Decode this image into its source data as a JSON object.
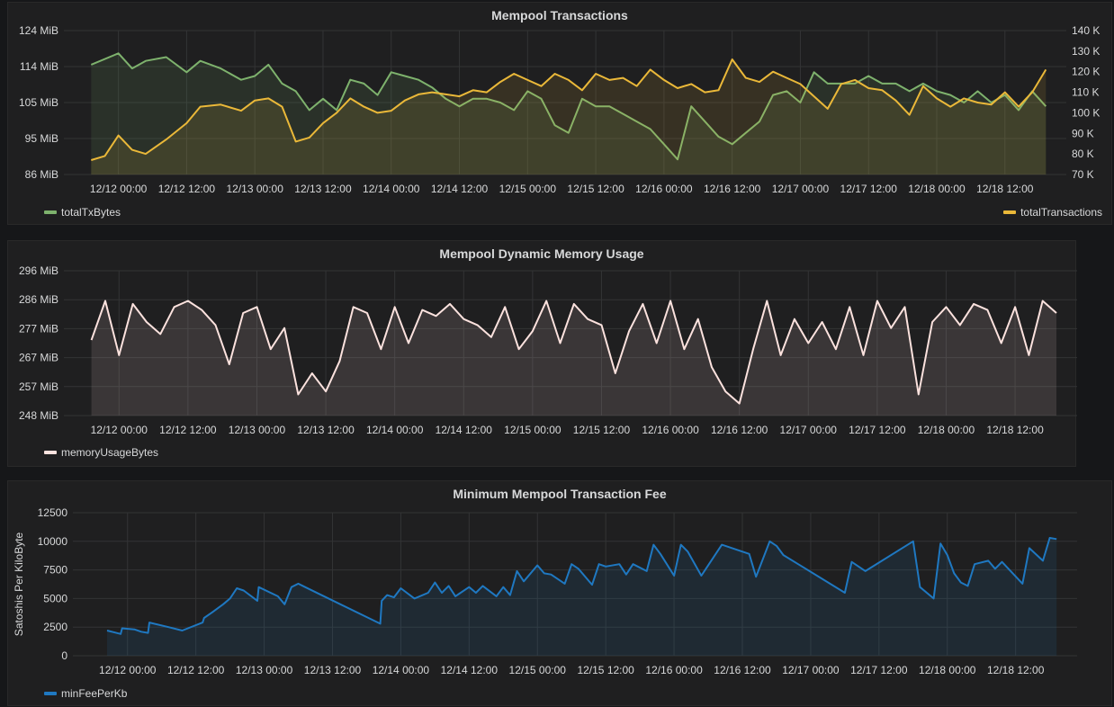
{
  "colors": {
    "green": "#7eb26d",
    "yellow": "#eab839",
    "pink": "#fce2de",
    "blue": "#1f78c1",
    "grid": "#333435",
    "tick": "#d8d9da"
  },
  "chart_data": [
    {
      "type": "line",
      "title": "Mempool Transactions",
      "x_ticks": [
        "12/12 00:00",
        "12/12 12:00",
        "12/13 00:00",
        "12/13 12:00",
        "12/14 00:00",
        "12/14 12:00",
        "12/15 00:00",
        "12/15 12:00",
        "12/16 00:00",
        "12/16 12:00",
        "12/17 00:00",
        "12/17 12:00",
        "12/18 00:00",
        "12/18 12:00"
      ],
      "y_ticks_left": [
        "124 MiB",
        "114 MiB",
        "105 MiB",
        "95 MiB",
        "86 MiB"
      ],
      "ylim_left": [
        86,
        124
      ],
      "y_ticks_right": [
        "140 K",
        "130 K",
        "120 K",
        "110 K",
        "100 K",
        "90 K",
        "80 K",
        "70 K"
      ],
      "ylim_right": [
        70,
        140
      ],
      "grid": true,
      "series": [
        {
          "name": "totalTxBytes",
          "axis": "left",
          "color": "#7eb26d",
          "x": [
            11.8,
            12.0,
            12.1,
            12.2,
            12.35,
            12.5,
            12.6,
            12.75,
            12.9,
            13.0,
            13.1,
            13.2,
            13.3,
            13.4,
            13.5,
            13.6,
            13.7,
            13.8,
            13.9,
            14.0,
            14.1,
            14.2,
            14.3,
            14.4,
            14.5,
            14.6,
            14.7,
            14.8,
            14.9,
            15.0,
            15.1,
            15.2,
            15.3,
            15.4,
            15.5,
            15.6,
            15.7,
            15.8,
            15.9,
            16.0,
            16.1,
            16.2,
            16.3,
            16.4,
            16.5,
            16.6,
            16.7,
            16.8,
            16.9,
            17.0,
            17.1,
            17.2,
            17.3,
            17.4,
            17.5,
            17.6,
            17.7,
            17.8,
            17.9,
            18.0,
            18.1,
            18.2,
            18.3,
            18.4,
            18.5,
            18.6,
            18.7,
            18.8
          ],
          "values": [
            115,
            118,
            114,
            116,
            117,
            113,
            116,
            114,
            111,
            112,
            115,
            110,
            108,
            103,
            106,
            103,
            111,
            110,
            107,
            113,
            112,
            111,
            109,
            106,
            104,
            106,
            106,
            105,
            103,
            108,
            106,
            99,
            97,
            106,
            104,
            104,
            102,
            100,
            98,
            94,
            90,
            104,
            100,
            96,
            94,
            97,
            100,
            107,
            108,
            105,
            113,
            110,
            110,
            110,
            112,
            110,
            110,
            108,
            110,
            108,
            107,
            105,
            108,
            105,
            107,
            103,
            108,
            104
          ]
        },
        {
          "name": "totalTransactions",
          "axis": "right",
          "color": "#eab839",
          "x": [
            11.8,
            11.9,
            12.0,
            12.1,
            12.2,
            12.35,
            12.5,
            12.6,
            12.75,
            12.9,
            13.0,
            13.1,
            13.2,
            13.3,
            13.4,
            13.5,
            13.6,
            13.7,
            13.8,
            13.9,
            14.0,
            14.1,
            14.2,
            14.3,
            14.4,
            14.5,
            14.6,
            14.7,
            14.8,
            14.9,
            15.0,
            15.1,
            15.2,
            15.3,
            15.4,
            15.5,
            15.6,
            15.7,
            15.8,
            15.9,
            16.0,
            16.1,
            16.2,
            16.3,
            16.4,
            16.5,
            16.6,
            16.7,
            16.8,
            16.9,
            17.0,
            17.1,
            17.2,
            17.3,
            17.4,
            17.5,
            17.6,
            17.7,
            17.8,
            17.9,
            18.0,
            18.1,
            18.2,
            18.3,
            18.4,
            18.5,
            18.6,
            18.7,
            18.8
          ],
          "values": [
            77,
            79,
            89,
            82,
            80,
            87,
            95,
            103,
            104,
            101,
            106,
            107,
            103,
            86,
            88,
            95,
            100,
            107,
            103,
            100,
            101,
            106,
            109,
            110,
            109,
            108,
            111,
            110,
            115,
            119,
            116,
            113,
            119,
            116,
            111,
            119,
            116,
            117,
            113,
            121,
            116,
            112,
            114,
            110,
            111,
            126,
            117,
            115,
            120,
            117,
            114,
            108,
            102,
            114,
            116,
            112,
            111,
            106,
            99,
            113,
            107,
            103,
            107,
            105,
            104,
            110,
            103,
            110,
            121
          ]
        }
      ]
    },
    {
      "type": "line",
      "title": "Mempool Dynamic Memory Usage",
      "x_ticks": [
        "12/12 00:00",
        "12/12 12:00",
        "12/13 00:00",
        "12/13 12:00",
        "12/14 00:00",
        "12/14 12:00",
        "12/15 00:00",
        "12/15 12:00",
        "12/16 00:00",
        "12/16 12:00",
        "12/17 00:00",
        "12/17 12:00",
        "12/18 00:00",
        "12/18 12:00"
      ],
      "y_ticks": [
        "296 MiB",
        "286 MiB",
        "277 MiB",
        "267 MiB",
        "257 MiB",
        "248 MiB"
      ],
      "ylim": [
        248,
        296
      ],
      "grid": true,
      "series": [
        {
          "name": "memoryUsageBytes",
          "color": "#fce2de",
          "x": [
            11.8,
            11.9,
            12.0,
            12.1,
            12.2,
            12.3,
            12.4,
            12.5,
            12.6,
            12.7,
            12.8,
            12.9,
            13.0,
            13.1,
            13.2,
            13.3,
            13.4,
            13.5,
            13.6,
            13.7,
            13.8,
            13.9,
            14.0,
            14.1,
            14.2,
            14.3,
            14.4,
            14.5,
            14.6,
            14.7,
            14.8,
            14.9,
            15.0,
            15.1,
            15.2,
            15.3,
            15.4,
            15.5,
            15.6,
            15.7,
            15.8,
            15.9,
            16.0,
            16.1,
            16.2,
            16.3,
            16.4,
            16.5,
            16.6,
            16.7,
            16.8,
            16.9,
            17.0,
            17.1,
            17.2,
            17.3,
            17.4,
            17.5,
            17.6,
            17.7,
            17.8,
            17.9,
            18.0,
            18.1,
            18.2,
            18.3,
            18.4,
            18.5,
            18.6,
            18.7,
            18.8
          ],
          "values": [
            273,
            286,
            268,
            285,
            279,
            275,
            284,
            286,
            283,
            278,
            265,
            282,
            284,
            270,
            277,
            255,
            262,
            256,
            266,
            284,
            282,
            270,
            284,
            272,
            283,
            281,
            285,
            280,
            278,
            274,
            284,
            270,
            276,
            286,
            272,
            285,
            280,
            278,
            262,
            276,
            285,
            272,
            286,
            270,
            280,
            264,
            256,
            252,
            270,
            286,
            268,
            280,
            272,
            279,
            270,
            284,
            268,
            286,
            277,
            284,
            255,
            279,
            284,
            278,
            285,
            283,
            272,
            284,
            268,
            286,
            282
          ]
        }
      ]
    },
    {
      "type": "area",
      "title": "Minimum Mempool Transaction Fee",
      "ylabel": "Satoshis Per KiloByte",
      "x_ticks": [
        "12/12 00:00",
        "12/12 12:00",
        "12/13 00:00",
        "12/13 12:00",
        "12/14 00:00",
        "12/14 12:00",
        "12/15 00:00",
        "12/15 12:00",
        "12/16 00:00",
        "12/16 12:00",
        "12/17 00:00",
        "12/17 12:00",
        "12/18 00:00",
        "12/18 12:00"
      ],
      "y_ticks": [
        "12500",
        "10000",
        "7500",
        "5000",
        "2500",
        "0"
      ],
      "ylim": [
        0,
        12500
      ],
      "grid": true,
      "series": [
        {
          "name": "minFeePerKb",
          "color": "#1f78c1",
          "x": [
            11.85,
            11.95,
            11.96,
            12.05,
            12.1,
            12.15,
            12.16,
            12.3,
            12.4,
            12.55,
            12.56,
            12.62,
            12.7,
            12.75,
            12.8,
            12.85,
            12.95,
            12.96,
            13.1,
            13.15,
            13.2,
            13.25,
            13.3,
            13.85,
            13.86,
            13.9,
            13.95,
            14.0,
            14.1,
            14.2,
            14.25,
            14.3,
            14.35,
            14.4,
            14.5,
            14.55,
            14.6,
            14.7,
            14.75,
            14.8,
            14.85,
            14.9,
            15.0,
            15.05,
            15.1,
            15.2,
            15.25,
            15.3,
            15.4,
            15.45,
            15.5,
            15.6,
            15.65,
            15.7,
            15.8,
            15.85,
            15.9,
            16.0,
            16.05,
            16.1,
            16.2,
            16.35,
            16.55,
            16.6,
            16.7,
            16.75,
            16.8,
            17.25,
            17.3,
            17.4,
            17.75,
            17.8,
            17.9,
            17.95,
            18.0,
            18.05,
            18.1,
            18.15,
            18.2,
            18.3,
            18.35,
            18.4,
            18.55,
            18.6,
            18.7,
            18.75,
            18.8
          ],
          "values": [
            2200,
            1900,
            2400,
            2300,
            2100,
            2000,
            2900,
            2500,
            2200,
            2900,
            3300,
            3800,
            4500,
            5000,
            5900,
            5700,
            4800,
            6000,
            5200,
            4500,
            6000,
            6300,
            6000,
            2800,
            4800,
            5300,
            5100,
            5900,
            5000,
            5500,
            6400,
            5500,
            6100,
            5200,
            6000,
            5500,
            6100,
            5200,
            6000,
            5300,
            7400,
            6500,
            7900,
            7200,
            7100,
            6300,
            8000,
            7600,
            6200,
            8000,
            7800,
            8000,
            7100,
            8000,
            7400,
            9700,
            8900,
            7000,
            9700,
            9100,
            7000,
            9700,
            8900,
            6900,
            10000,
            9600,
            8800,
            5500,
            8200,
            7400,
            10000,
            6000,
            5000,
            9800,
            8800,
            7200,
            6400,
            6100,
            8000,
            8300,
            7600,
            8200,
            6300,
            9400,
            8300,
            10300,
            10200
          ]
        }
      ]
    }
  ]
}
